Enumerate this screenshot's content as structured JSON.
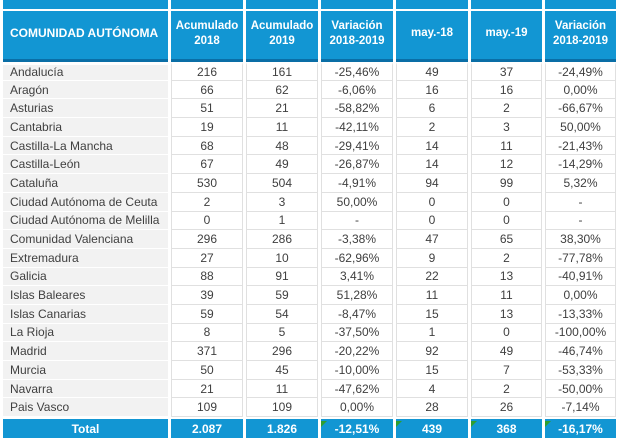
{
  "colors": {
    "header_blue": "#1296D3",
    "header_border_dark": "#0A6EA6",
    "name_cell_bg": "#F2F2F2",
    "grid_line": "#E0E0E0",
    "text_dark": "#3F3F3F",
    "total_text": "#FFFFFF",
    "error_flag_green": "#2F9E2F"
  },
  "icons": {
    "error_flag": "green-triangle-top-left"
  },
  "table": {
    "columns": [
      "COMUNIDAD AUTÓNOMA",
      "Acumulado 2018",
      "Acumulado 2019",
      "Variación 2018-2019",
      "may.-18",
      "may.-19",
      "Variación 2018-2019"
    ],
    "rows": [
      {
        "name": "Andalucía",
        "values": [
          "216",
          "161",
          "-25,46%",
          "49",
          "37",
          "-24,49%"
        ]
      },
      {
        "name": "Aragón",
        "values": [
          "66",
          "62",
          "-6,06%",
          "16",
          "16",
          "0,00%"
        ]
      },
      {
        "name": "Asturias",
        "values": [
          "51",
          "21",
          "-58,82%",
          "6",
          "2",
          "-66,67%"
        ]
      },
      {
        "name": "Cantabria",
        "values": [
          "19",
          "11",
          "-42,11%",
          "2",
          "3",
          "50,00%"
        ]
      },
      {
        "name": "Castilla-La Mancha",
        "values": [
          "68",
          "48",
          "-29,41%",
          "14",
          "11",
          "-21,43%"
        ]
      },
      {
        "name": "Castilla-León",
        "values": [
          "67",
          "49",
          "-26,87%",
          "14",
          "12",
          "-14,29%"
        ]
      },
      {
        "name": "Cataluña",
        "values": [
          "530",
          "504",
          "-4,91%",
          "94",
          "99",
          "5,32%"
        ]
      },
      {
        "name": "Ciudad Autónoma de Ceuta",
        "values": [
          "2",
          "3",
          "50,00%",
          "0",
          "0",
          "-"
        ]
      },
      {
        "name": "Ciudad Autónoma de Melilla",
        "values": [
          "0",
          "1",
          "-",
          "0",
          "0",
          "-"
        ]
      },
      {
        "name": "Comunidad Valenciana",
        "values": [
          "296",
          "286",
          "-3,38%",
          "47",
          "65",
          "38,30%"
        ]
      },
      {
        "name": "Extremadura",
        "values": [
          "27",
          "10",
          "-62,96%",
          "9",
          "2",
          "-77,78%"
        ]
      },
      {
        "name": "Galicia",
        "values": [
          "88",
          "91",
          "3,41%",
          "22",
          "13",
          "-40,91%"
        ]
      },
      {
        "name": "Islas Baleares",
        "values": [
          "39",
          "59",
          "51,28%",
          "11",
          "11",
          "0,00%"
        ]
      },
      {
        "name": "Islas Canarias",
        "values": [
          "59",
          "54",
          "-8,47%",
          "15",
          "13",
          "-13,33%"
        ]
      },
      {
        "name": "La Rioja",
        "values": [
          "8",
          "5",
          "-37,50%",
          "1",
          "0",
          "-100,00%"
        ]
      },
      {
        "name": "Madrid",
        "values": [
          "371",
          "296",
          "-20,22%",
          "92",
          "49",
          "-46,74%"
        ]
      },
      {
        "name": "Murcia",
        "values": [
          "50",
          "45",
          "-10,00%",
          "15",
          "7",
          "-53,33%"
        ]
      },
      {
        "name": "Navarra",
        "values": [
          "21",
          "11",
          "-47,62%",
          "4",
          "2",
          "-50,00%"
        ]
      },
      {
        "name": "Pais Vasco",
        "values": [
          "109",
          "109",
          "0,00%",
          "28",
          "26",
          "-7,14%"
        ]
      }
    ],
    "total_row": {
      "label": "Total",
      "values": [
        "2.087",
        "1.826",
        "-12,51%",
        "439",
        "368",
        "-16,17%"
      ],
      "error_flags": [
        false,
        false,
        true,
        true,
        true,
        true
      ]
    }
  },
  "chart_data": {
    "type": "table",
    "title": "",
    "columns": [
      "COMUNIDAD AUTÓNOMA",
      "Acumulado 2018",
      "Acumulado 2019",
      "Variación 2018-2019",
      "may.-18",
      "may.-19",
      "Variación 2018-2019"
    ],
    "rows": [
      [
        "Andalucía",
        216,
        161,
        "-25,46%",
        49,
        37,
        "-24,49%"
      ],
      [
        "Aragón",
        66,
        62,
        "-6,06%",
        16,
        16,
        "0,00%"
      ],
      [
        "Asturias",
        51,
        21,
        "-58,82%",
        6,
        2,
        "-66,67%"
      ],
      [
        "Cantabria",
        19,
        11,
        "-42,11%",
        2,
        3,
        "50,00%"
      ],
      [
        "Castilla-La Mancha",
        68,
        48,
        "-29,41%",
        14,
        11,
        "-21,43%"
      ],
      [
        "Castilla-León",
        67,
        49,
        "-26,87%",
        14,
        12,
        "-14,29%"
      ],
      [
        "Cataluña",
        530,
        504,
        "-4,91%",
        94,
        99,
        "5,32%"
      ],
      [
        "Ciudad Autónoma de Ceuta",
        2,
        3,
        "50,00%",
        0,
        0,
        "-"
      ],
      [
        "Ciudad Autónoma de Melilla",
        0,
        1,
        "-",
        0,
        0,
        "-"
      ],
      [
        "Comunidad Valenciana",
        296,
        286,
        "-3,38%",
        47,
        65,
        "38,30%"
      ],
      [
        "Extremadura",
        27,
        10,
        "-62,96%",
        9,
        2,
        "-77,78%"
      ],
      [
        "Galicia",
        88,
        91,
        "3,41%",
        22,
        13,
        "-40,91%"
      ],
      [
        "Islas Baleares",
        39,
        59,
        "51,28%",
        11,
        11,
        "0,00%"
      ],
      [
        "Islas Canarias",
        59,
        54,
        "-8,47%",
        15,
        13,
        "-13,33%"
      ],
      [
        "La Rioja",
        8,
        5,
        "-37,50%",
        1,
        0,
        "-100,00%"
      ],
      [
        "Madrid",
        371,
        296,
        "-20,22%",
        92,
        49,
        "-46,74%"
      ],
      [
        "Murcia",
        50,
        45,
        "-10,00%",
        15,
        7,
        "-53,33%"
      ],
      [
        "Navarra",
        21,
        11,
        "-47,62%",
        4,
        2,
        "-50,00%"
      ],
      [
        "Pais Vasco",
        109,
        109,
        "0,00%",
        28,
        26,
        "-7,14%"
      ]
    ],
    "total": [
      "Total",
      "2.087",
      "1.826",
      "-12,51%",
      439,
      368,
      "-16,17%"
    ]
  }
}
